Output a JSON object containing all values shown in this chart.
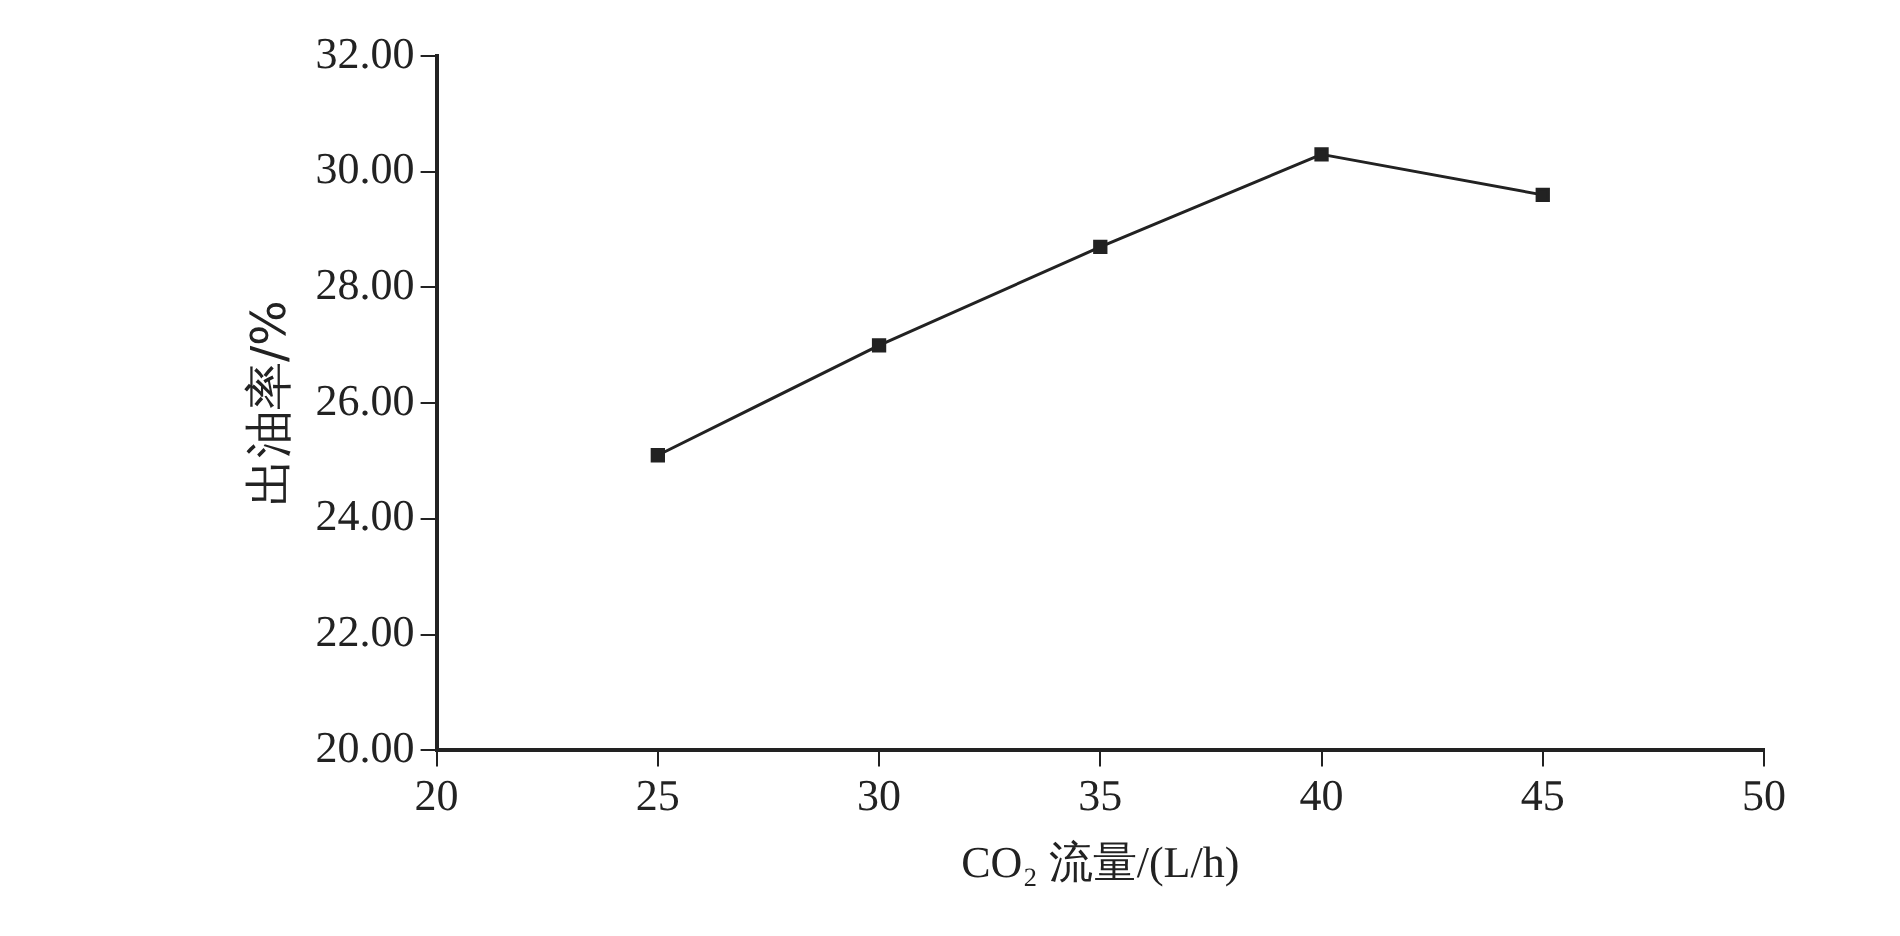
{
  "chart_data": {
    "type": "line",
    "xlabel": "CO₂ 流量/(L/h)",
    "ylabel": "出油率/%",
    "x": [
      25,
      30,
      35,
      40,
      45
    ],
    "series": [
      {
        "color": "#222222",
        "values": [
          25.1,
          27.0,
          28.7,
          30.3,
          29.6
        ]
      }
    ],
    "xlim": [
      20,
      50
    ],
    "xticks": [
      20,
      25,
      30,
      35,
      40,
      45,
      50
    ],
    "ylim": [
      20,
      32
    ],
    "yticks": [
      {
        "value": 20,
        "label": "20.00"
      },
      {
        "value": 22,
        "label": "22.00"
      },
      {
        "value": 24,
        "label": "24.00"
      },
      {
        "value": 26,
        "label": "26.00"
      },
      {
        "value": 28,
        "label": "28.00"
      },
      {
        "value": 30,
        "label": "30.00"
      },
      {
        "value": 32,
        "label": "32.00"
      }
    ],
    "grid": false,
    "legend": false,
    "marker": "square",
    "line_style": "solid"
  }
}
